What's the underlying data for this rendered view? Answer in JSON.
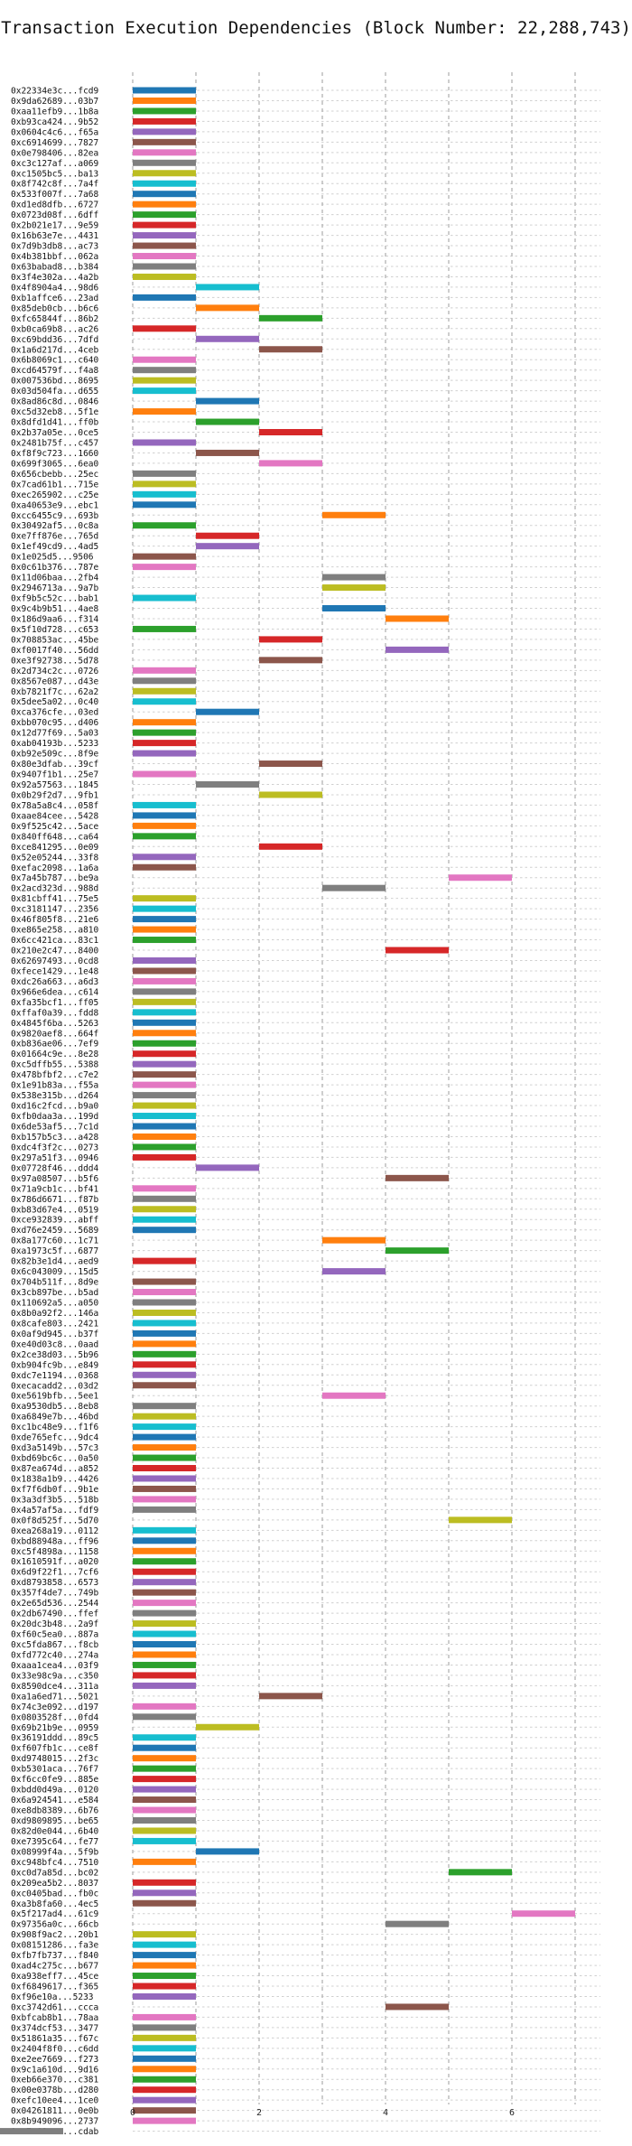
{
  "chart_data": {
    "type": "bar",
    "orientation": "horizontal-range",
    "title": "Transaction Execution Dependencies (Block Number: 22,288,743)",
    "xlabel": "",
    "ylabel": "",
    "xlim": [
      0,
      7.4
    ],
    "xticks": [
      "0",
      "2",
      "4",
      "6"
    ],
    "grid": true,
    "color_cycle": [
      "#1f77b4",
      "#ff7f0e",
      "#2ca02c",
      "#d62728",
      "#9467bd",
      "#8c564b",
      "#e377c2",
      "#7f7f7f",
      "#bcbd22",
      "#17becf"
    ],
    "transactions": [
      "0x22334e3c...fcd9",
      "0x9da62689...03b7",
      "0xaa11efb9...1b8a",
      "0xb93ca424...9b52",
      "0x0604c4c6...f65a",
      "0xc6914699...7827",
      "0x0e798406...82ea",
      "0xc3c127af...a069",
      "0xc1505bc5...ba13",
      "0x8f742c8f...7a4f",
      "0x533f007f...7a68",
      "0xd1ed8dfb...6727",
      "0x0723d08f...6dff",
      "0x2b021e17...9e59",
      "0x16b63e7e...4431",
      "0x7d9b3db8...ac73",
      "0x4b381bbf...062a",
      "0x63babad8...b384",
      "0x3f4e302a...4a2b",
      "0x4f8904a4...98d6",
      "0xb1affce6...23ad",
      "0x85deb0cb...b6c6",
      "0xfc65844f...86b2",
      "0xb0ca69b8...ac26",
      "0xc69bdd36...7dfd",
      "0x1a6d217d...4ceb",
      "0x6b8069c1...c640",
      "0xcd64579f...f4a8",
      "0x007536bd...8695",
      "0x03d504fa...d655",
      "0x8ad86c8d...0846",
      "0xc5d32eb8...5f1e",
      "0x8dfd1d41...ff0b",
      "0x2b37a05e...0ce5",
      "0x2481b75f...c457",
      "0xf8f9c723...1660",
      "0x699f3065...6ea0",
      "0x656cbebb...25ec",
      "0x7cad61b1...715e",
      "0xec265902...c25e",
      "0xa40653e9...ebc1",
      "0xcc6455c9...693b",
      "0x30492af5...0c8a",
      "0xe7ff876e...765d",
      "0x1ef49cd9...4ad5",
      "0x1e025d5...9506",
      "0x0c61b376...787e",
      "0x11d06baa...2fb4",
      "0x2946713a...9a7b",
      "0xf9b5c52c...bab1",
      "0x9c4b9b51...4ae8",
      "0x186d9aa6...f314",
      "0x5f10d728...c653",
      "0x708853ac...45be",
      "0xf0017f40...56dd",
      "0xe3f92738...5d78",
      "0x2d734c2c...0726",
      "0x8567e087...d43e",
      "0xb7821f7c...62a2",
      "0x5dee5a02...0c40",
      "0xca376cfe...03ed",
      "0xbb070c95...d406",
      "0x12d77f69...5a03",
      "0xab04193b...5233",
      "0xb92e509c...8f9e",
      "0x80e3dfab...39cf",
      "0x9407f1b1...25e7",
      "0x92a57563...1845",
      "0x0b29f2d7...9fb1",
      "0x78a5a8c4...058f",
      "0xaae84cee...5428",
      "0x9f525c42...5ace",
      "0x840ff648...ca64",
      "0xce841295...0e09",
      "0x52e05244...33f8",
      "0xefac2098...1a6a",
      "0x7a45b787...be9a",
      "0x2acd323d...988d",
      "0x81cbff41...75e5",
      "0xc3181147...2356",
      "0x46f805f8...21e6",
      "0xe865e258...a810",
      "0x6cc421ca...83c1",
      "0x210e2c47...8400",
      "0x62697493...0cd8",
      "0xfece1429...1e48",
      "0xdc26a663...a6d3",
      "0x966e6dea...c614",
      "0xfa35bcf1...ff05",
      "0xffaf0a39...fdd8",
      "0x4845f6ba...5263",
      "0x9820aef8...664f",
      "0xb836ae06...7ef9",
      "0x01664c9e...8e28",
      "0xc5dffb55...5388",
      "0x478bfbf2...c7e2",
      "0x1e91b83a...f55a",
      "0x538e315b...d264",
      "0xd16c2fcd...b9a0",
      "0xfb0daa3a...199d",
      "0x6de53af5...7c1d",
      "0xb157b5c3...a428",
      "0xdc4f3f2c...0273",
      "0x297a51f3...0946",
      "0x07728f46...ddd4",
      "0x97a08507...b5f6",
      "0x71a9cb1c...bf41",
      "0x786d6671...f87b",
      "0xb83d67e4...0519",
      "0xce932839...abff",
      "0xd76e2459...5689",
      "0x8a177c60...1c71",
      "0xa1973c5f...6877",
      "0x82b3e1d4...aed9",
      "0x6c043009...15d5",
      "0x704b511f...8d9e",
      "0x3cb897be...b5ad",
      "0x110692a5...a050",
      "0x8b0a92f2...146a",
      "0x8cafe803...2421",
      "0x0af9d945...b37f",
      "0xe40d03c8...0aad",
      "0x2ce38d03...5b96",
      "0xb904fc9b...e849",
      "0xdc7e1194...0368",
      "0xecacadd2...03d2",
      "0xe5619bfb...5ee1",
      "0xa9530db5...8eb8",
      "0xa6849e7b...46bd",
      "0xc1bc48e9...f1f6",
      "0xde765efc...9dc4",
      "0xd3a5149b...57c3",
      "0xbd69bc6c...0a50",
      "0x87ea674d...a852",
      "0x1838a1b9...4426",
      "0xf7f6db0f...9b1e",
      "0x3a3df3b5...518b",
      "0x4a57af5a...fdf9",
      "0x0f8d525f...5d70",
      "0xea268a19...0112",
      "0xbd88948a...ff96",
      "0xc5f4898a...1158",
      "0x1610591f...a020",
      "0x6d9f22f1...7cf6",
      "0xd8793858...6573",
      "0x357f4de7...749b",
      "0x2e65d536...2544",
      "0x2db67490...ffef",
      "0x20dc3b48...2a9f",
      "0xf60c5ea0...887a",
      "0xc5fda867...f8cb",
      "0xfd772c40...274a",
      "0xaaa1cea4...03f9",
      "0x33e98c9a...c350",
      "0x8590dce4...311a",
      "0xa1a6ed71...5021",
      "0x74c3e092...d197",
      "0x0803528f...0fd4",
      "0x69b21b9e...0959",
      "0x36191ddd...89c5",
      "0xf607fb1c...ce8f",
      "0xd9748015...2f3c",
      "0xb5301aca...76f7",
      "0xf6cc0fe9...885e",
      "0xbdd0d49a...0120",
      "0x6a924541...e584",
      "0xe8db8389...6b76",
      "0xd9809895...be65",
      "0x82d0e044...6b40",
      "0xe7395c64...fe77",
      "0x08999f4a...5f9b",
      "0xc948bfc4...7510",
      "0xc0d7a85d...bc02",
      "0x209ea5b2...8037",
      "0xc0405bad...fb0c",
      "0xa3b8fa60...4ec5",
      "0x5f217ad4...61c9",
      "0x97356a0c...66cb",
      "0x908f9ac2...20b1",
      "0x08151286...fa3e",
      "0xfb7fb737...f840",
      "0xad4c275c...b677",
      "0xa938eff7...45ce",
      "0xf6849617...f365",
      "0xf96e10a...5233",
      "0xc3742d61...ccca",
      "0xbfcab8b1...78aa",
      "0x374dcf53...3477",
      "0x51861a35...f67c",
      "0x2404f8f0...c6dd",
      "0xe2ee7669...f273",
      "0x9c1a610d...9d16",
      "0xeb66e370...c381",
      "0x00e0378b...d280",
      "0xefc10ee4...1ce0",
      "0x04261811...0e0b",
      "0x8b949096...2737",
      "0xa7a68cee...cdab"
    ],
    "starts": [
      0,
      0,
      0,
      0,
      0,
      0,
      0,
      0,
      0,
      0,
      0,
      0,
      0,
      0,
      0,
      0,
      0,
      0,
      0,
      1,
      0,
      1,
      2,
      0,
      1,
      2,
      0,
      0,
      0,
      0,
      1,
      0,
      1,
      2,
      0,
      1,
      2,
      0,
      0,
      0,
      0,
      3,
      0,
      1,
      1,
      0,
      0,
      3,
      3,
      0,
      3,
      4,
      0,
      2,
      4,
      2,
      0,
      0,
      0,
      0,
      1,
      0,
      0,
      0,
      0,
      2,
      0,
      1,
      2,
      0,
      0,
      0,
      0,
      2,
      0,
      0,
      5,
      3,
      0,
      0,
      0,
      0,
      0,
      4,
      0,
      0,
      0,
      0,
      0,
      0,
      0,
      0,
      0,
      0,
      0,
      0,
      0,
      0,
      0,
      0,
      0,
      0,
      0,
      0,
      1,
      4,
      0,
      0,
      0,
      0,
      0,
      3,
      4,
      0,
      3,
      0,
      0,
      0,
      0,
      0,
      0,
      0,
      0,
      0,
      0,
      0,
      3,
      0,
      0,
      0,
      0,
      0,
      0,
      0,
      0,
      0,
      0,
      0,
      5,
      0,
      0,
      0,
      0,
      0,
      0,
      0,
      0,
      0,
      0,
      0,
      0,
      0,
      0,
      0,
      0,
      2,
      0,
      0,
      1,
      0,
      0,
      0,
      0,
      0,
      0,
      0,
      0,
      0,
      0,
      0,
      1,
      0,
      5,
      0,
      0,
      0,
      6,
      4,
      0,
      0,
      0,
      0,
      0,
      0,
      0,
      4,
      0,
      0,
      0,
      0,
      0,
      0,
      0,
      0,
      0,
      0,
      0
    ],
    "durations": [
      1,
      1,
      1,
      1,
      1,
      1,
      1,
      1,
      1,
      1,
      1,
      1,
      1,
      1,
      1,
      1,
      1,
      1,
      1,
      1,
      1,
      1,
      1,
      1,
      1,
      1,
      1,
      1,
      1,
      1,
      1,
      1,
      1,
      1,
      1,
      1,
      1,
      1,
      1,
      1,
      1,
      1,
      1,
      1,
      1,
      1,
      1,
      1,
      1,
      1,
      1,
      1,
      1,
      1,
      1,
      1,
      1,
      1,
      1,
      1,
      1,
      1,
      1,
      1,
      1,
      1,
      1,
      1,
      1,
      1,
      1,
      1,
      1,
      1,
      1,
      1,
      1,
      1,
      1,
      1,
      1,
      1,
      1,
      1,
      1,
      1,
      1,
      1,
      1,
      1,
      1,
      1,
      1,
      1,
      1,
      1,
      1,
      1,
      1,
      1,
      1,
      1,
      1,
      1,
      1,
      1,
      1,
      1,
      1,
      1,
      1,
      1,
      1,
      1,
      1,
      1,
      1,
      1,
      1,
      1,
      1,
      1,
      1,
      1,
      1,
      1,
      1,
      1,
      1,
      1,
      1,
      1,
      1,
      1,
      1,
      1,
      1,
      1,
      1,
      1,
      1,
      1,
      1,
      1,
      1,
      1,
      1,
      1,
      1,
      1,
      1,
      1,
      1,
      1,
      1,
      1,
      1,
      1,
      1,
      1,
      1,
      1,
      1,
      1,
      1,
      1,
      1,
      1,
      1,
      1,
      1,
      1,
      1,
      1,
      1,
      1,
      1,
      1,
      1,
      1,
      1,
      1,
      1,
      1,
      1,
      1,
      1,
      1,
      1,
      1,
      1,
      1,
      1,
      1,
      1,
      1,
      1,
      1,
      1,
      1,
      1
    ]
  }
}
